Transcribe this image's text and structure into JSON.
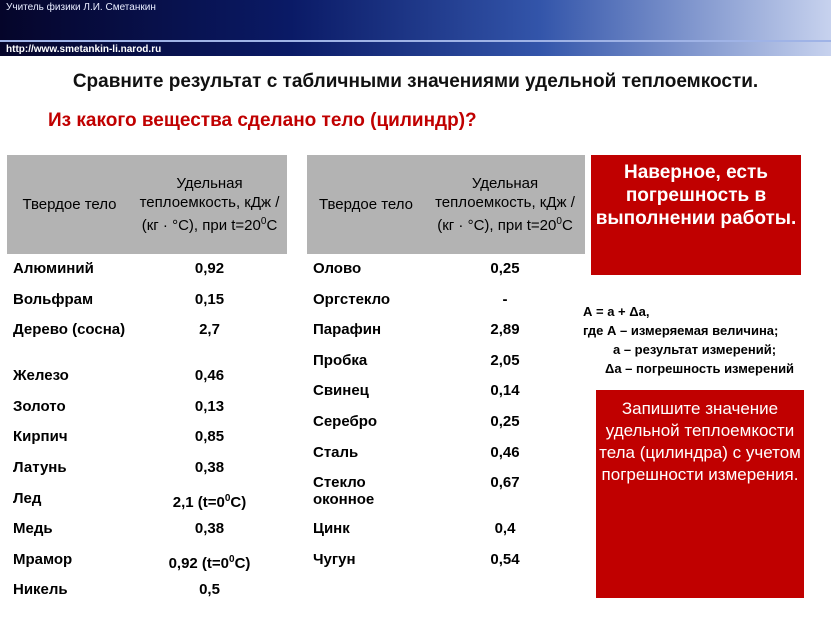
{
  "header": {
    "author": "Учитель физики Л.И. Сметанкин",
    "url": "http://www.smetankin-li.narod.ru"
  },
  "title": "Сравните результат с табличными значениями удельной теплоемкости.",
  "question": "Из какого вещества сделано тело (цилиндр)?",
  "table_left": {
    "header_name": "Твердое тело",
    "header_value": "Удельная теплоемкость, кДж / (кг · °С), при t=200С",
    "rows": [
      {
        "name": "Алюминий",
        "value": "0,92"
      },
      {
        "name": "Вольфрам",
        "value": "0,15"
      },
      {
        "name": "Дерево (сосна)",
        "value": "2,7"
      },
      {
        "name": "Железо",
        "value": "0,46"
      },
      {
        "name": "Золото",
        "value": "0,13"
      },
      {
        "name": "Кирпич",
        "value": "0,85"
      },
      {
        "name": "Латунь",
        "value": "0,38"
      },
      {
        "name": "Лед",
        "value": "2,1 (t=00С)"
      },
      {
        "name": "Медь",
        "value": "0,38"
      },
      {
        "name": "Мрамор",
        "value": "0,92 (t=00С)"
      },
      {
        "name": "Никель",
        "value": "0,5"
      }
    ]
  },
  "table_right": {
    "header_name": "Твердое тело",
    "header_value": "Удельная теплоемкость, кДж / (кг · °С), при t=200С",
    "rows": [
      {
        "name": "Олово",
        "value": "0,25"
      },
      {
        "name": "Оргстекло",
        "value": "-"
      },
      {
        "name": "Парафин",
        "value": "2,89"
      },
      {
        "name": "Пробка",
        "value": "2,05"
      },
      {
        "name": "Свинец",
        "value": "0,14"
      },
      {
        "name": "Серебро",
        "value": "0,25"
      },
      {
        "name": "Сталь",
        "value": "0,46"
      },
      {
        "name": "Стекло оконное",
        "value": "0,67"
      },
      {
        "name": "Цинк",
        "value": "0,4"
      },
      {
        "name": "Чугун",
        "value": "0,54"
      }
    ]
  },
  "note_error": "Наверное, есть погрешность в выполнении работы.",
  "formula": {
    "line1": "А = а + Δа,",
    "line2": "где А – измеряемая величина;",
    "line3": "а – результат измерений;",
    "line4": "Δа – погрешность измерений"
  },
  "task": "Запишите значение удельной теплоемкости тела (цилиндра) с учетом погрешности измерения.",
  "colors": {
    "accent_red": "#c00000",
    "header_gray": "#b3b3b3",
    "header_blue": "#0a1a66"
  }
}
